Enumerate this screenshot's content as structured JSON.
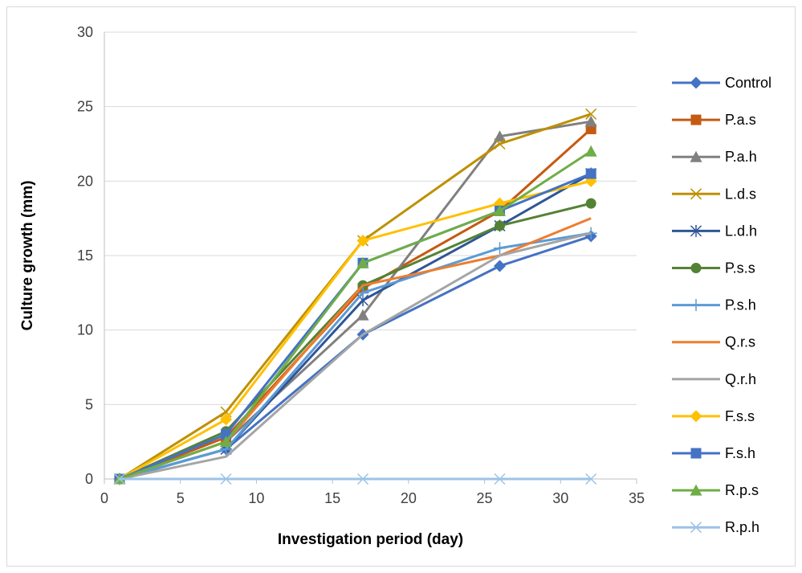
{
  "chart_data": {
    "type": "line",
    "title": "",
    "xlabel": "Investigation period (day)",
    "ylabel": "Culture growth (mm)",
    "xlim": [
      0,
      35
    ],
    "ylim": [
      0,
      30
    ],
    "xticks": [
      0,
      5,
      10,
      15,
      20,
      25,
      30,
      35
    ],
    "yticks": [
      0,
      5,
      10,
      15,
      20,
      25,
      30
    ],
    "grid": "horizontal",
    "legend": "right",
    "x": [
      1,
      8,
      17,
      26,
      32
    ],
    "series": [
      {
        "name": "Control",
        "values": [
          0,
          2.0,
          9.7,
          14.3,
          16.3
        ],
        "color": "#4472C4",
        "marker": "diamond"
      },
      {
        "name": "P.a.s",
        "values": [
          0,
          2.8,
          12.8,
          18.0,
          23.5
        ],
        "color": "#C55A11",
        "marker": "square"
      },
      {
        "name": "P.a.h",
        "values": [
          0,
          2.5,
          11.0,
          23.0,
          24.0
        ],
        "color": "#808080",
        "marker": "triangle"
      },
      {
        "name": "L.d.s",
        "values": [
          0,
          4.5,
          16.0,
          22.5,
          24.5
        ],
        "color": "#BF9000",
        "marker": "x"
      },
      {
        "name": "L.d.h",
        "values": [
          0,
          2.0,
          12.0,
          17.0,
          20.5
        ],
        "color": "#2F5597",
        "marker": "star"
      },
      {
        "name": "P.s.s",
        "values": [
          0,
          3.2,
          13.0,
          17.0,
          18.5
        ],
        "color": "#548235",
        "marker": "circle"
      },
      {
        "name": "P.s.h",
        "values": [
          0,
          2.0,
          12.5,
          15.5,
          16.5
        ],
        "color": "#5B9BD5",
        "marker": "plus"
      },
      {
        "name": "Q.r.s",
        "values": [
          0,
          2.5,
          13.0,
          15.0,
          17.5
        ],
        "color": "#ED7D31",
        "marker": "none"
      },
      {
        "name": "Q.r.h",
        "values": [
          0,
          1.5,
          9.7,
          15.0,
          16.5
        ],
        "color": "#A5A5A5",
        "marker": "none"
      },
      {
        "name": "F.s.s",
        "values": [
          0,
          4.0,
          16.0,
          18.5,
          20.0
        ],
        "color": "#FFC000",
        "marker": "diamond"
      },
      {
        "name": "F.s.h",
        "values": [
          0,
          3.0,
          14.5,
          18.0,
          20.5
        ],
        "color": "#4472C4",
        "marker": "square"
      },
      {
        "name": "R.p.s",
        "values": [
          0,
          2.5,
          14.5,
          18.0,
          22.0
        ],
        "color": "#70AD47",
        "marker": "triangle"
      },
      {
        "name": "R.p.h",
        "values": [
          0,
          0,
          0,
          0,
          0
        ],
        "color": "#9DC3E6",
        "marker": "x"
      }
    ]
  }
}
